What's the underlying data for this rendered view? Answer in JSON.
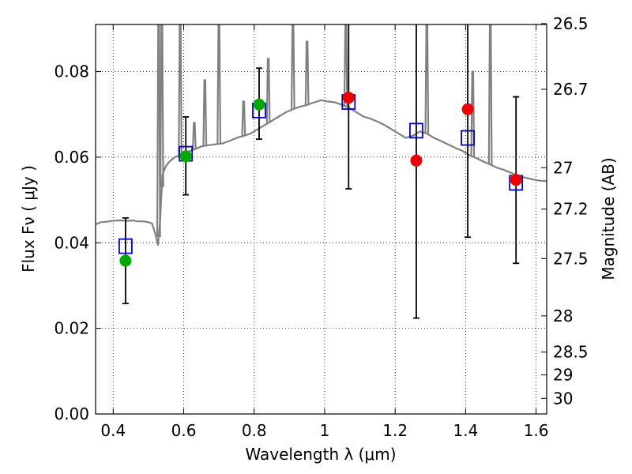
{
  "chart_data": {
    "type": "scatter",
    "xlabel": "Wavelength  λ (μm)",
    "ylabel": "Flux  Fν  ( μJy )",
    "y2label": "Magnitude (AB)",
    "xlim": [
      0.35,
      1.63
    ],
    "ylim": [
      0.0,
      0.091
    ],
    "x_ticks": [
      0.4,
      0.6,
      0.8,
      1.0,
      1.2,
      1.4,
      1.6
    ],
    "x_tick_labels": [
      "0.4",
      "0.6",
      "0.8",
      "1",
      "1.2",
      "1.4",
      "1.6"
    ],
    "y_ticks": [
      0.0,
      0.02,
      0.04,
      0.06,
      0.08
    ],
    "y_tick_labels": [
      "0.00",
      "0.02",
      "0.04",
      "0.06",
      "0.08"
    ],
    "mag_ticks": [
      "26.5",
      "26.7",
      "27",
      "27.2",
      "27.5",
      "28",
      "28.5",
      "29",
      "30"
    ],
    "grid": true,
    "grid_style": "dotted",
    "colors": {
      "spectrum": "#808080",
      "green_points": "#00aa00",
      "red_points": "#ee0000",
      "model_boxes": "#0000cc",
      "errorbars": "#000000"
    },
    "series": [
      {
        "kind": "observed",
        "color": "green",
        "points": [
          {
            "x": 0.435,
            "y": 0.0358,
            "yerr_low": 0.0258,
            "yerr_high": 0.0458
          },
          {
            "x": 0.606,
            "y": 0.0602,
            "yerr_low": 0.0512,
            "yerr_high": 0.0694
          },
          {
            "x": 0.814,
            "y": 0.0723,
            "yerr_low": 0.0642,
            "yerr_high": 0.0808
          }
        ]
      },
      {
        "kind": "observed",
        "color": "red",
        "points": [
          {
            "x": 1.068,
            "y": 0.0739,
            "yerr_low": 0.0526,
            "yerr_high": 0.091
          },
          {
            "x": 1.26,
            "y": 0.0592,
            "yerr_low": 0.0224,
            "yerr_high": 0.091
          },
          {
            "x": 1.406,
            "y": 0.0712,
            "yerr_low": 0.0413,
            "yerr_high": 0.091
          },
          {
            "x": 1.543,
            "y": 0.0547,
            "yerr_low": 0.0352,
            "yerr_high": 0.0741
          }
        ]
      },
      {
        "kind": "model-photometry",
        "marker": "open-square",
        "points": [
          {
            "x": 0.435,
            "y": 0.0392
          },
          {
            "x": 0.606,
            "y": 0.0608
          },
          {
            "x": 0.814,
            "y": 0.0709
          },
          {
            "x": 1.068,
            "y": 0.0729
          },
          {
            "x": 1.26,
            "y": 0.0662
          },
          {
            "x": 1.406,
            "y": 0.0645
          },
          {
            "x": 1.543,
            "y": 0.054
          }
        ]
      },
      {
        "kind": "model-spectrum",
        "color": "gray",
        "points": [
          [
            0.35,
            0.0443
          ],
          [
            0.365,
            0.0448
          ],
          [
            0.38,
            0.0449
          ],
          [
            0.395,
            0.0451
          ],
          [
            0.41,
            0.0452
          ],
          [
            0.425,
            0.0452
          ],
          [
            0.44,
            0.0451
          ],
          [
            0.455,
            0.0452
          ],
          [
            0.47,
            0.045
          ],
          [
            0.485,
            0.045
          ],
          [
            0.5,
            0.0448
          ],
          [
            0.51,
            0.0445
          ],
          [
            0.52,
            0.042
          ],
          [
            0.527,
            0.0395
          ],
          [
            0.533,
            0.045
          ],
          [
            0.536,
            0.05
          ],
          [
            0.54,
            0.056
          ],
          [
            0.55,
            0.058
          ],
          [
            0.56,
            0.059
          ],
          [
            0.575,
            0.06
          ],
          [
            0.59,
            0.0605
          ],
          [
            0.61,
            0.0612
          ],
          [
            0.63,
            0.0618
          ],
          [
            0.65,
            0.0625
          ],
          [
            0.67,
            0.0628
          ],
          [
            0.69,
            0.063
          ],
          [
            0.71,
            0.0632
          ],
          [
            0.73,
            0.0638
          ],
          [
            0.75,
            0.0645
          ],
          [
            0.77,
            0.065
          ],
          [
            0.79,
            0.0655
          ],
          [
            0.81,
            0.0665
          ],
          [
            0.83,
            0.0675
          ],
          [
            0.85,
            0.0685
          ],
          [
            0.87,
            0.0695
          ],
          [
            0.89,
            0.0705
          ],
          [
            0.91,
            0.0712
          ],
          [
            0.93,
            0.0718
          ],
          [
            0.95,
            0.0722
          ],
          [
            0.97,
            0.0728
          ],
          [
            0.99,
            0.0733
          ],
          [
            1.01,
            0.073
          ],
          [
            1.03,
            0.0728
          ],
          [
            1.05,
            0.0722
          ],
          [
            1.07,
            0.0715
          ],
          [
            1.09,
            0.0705
          ],
          [
            1.11,
            0.0695
          ],
          [
            1.13,
            0.069
          ],
          [
            1.15,
            0.0683
          ],
          [
            1.17,
            0.0675
          ],
          [
            1.19,
            0.0665
          ],
          [
            1.21,
            0.0655
          ],
          [
            1.23,
            0.0645
          ],
          [
            1.25,
            0.065
          ],
          [
            1.27,
            0.066
          ],
          [
            1.29,
            0.0655
          ],
          [
            1.31,
            0.0645
          ],
          [
            1.33,
            0.0638
          ],
          [
            1.35,
            0.063
          ],
          [
            1.37,
            0.0622
          ],
          [
            1.39,
            0.0615
          ],
          [
            1.41,
            0.0605
          ],
          [
            1.43,
            0.0598
          ],
          [
            1.45,
            0.059
          ],
          [
            1.47,
            0.0583
          ],
          [
            1.49,
            0.0575
          ],
          [
            1.51,
            0.057
          ],
          [
            1.53,
            0.0563
          ],
          [
            1.55,
            0.0555
          ],
          [
            1.57,
            0.0552
          ],
          [
            1.59,
            0.0548
          ],
          [
            1.61,
            0.0545
          ],
          [
            1.63,
            0.0544
          ]
        ],
        "emission_lines": [
          {
            "x": 0.529,
            "y": 0.091
          },
          {
            "x": 0.538,
            "y": 0.091
          },
          {
            "x": 0.59,
            "y": 0.091
          },
          {
            "x": 0.63,
            "y": 0.068
          },
          {
            "x": 0.66,
            "y": 0.078
          },
          {
            "x": 0.7,
            "y": 0.091
          },
          {
            "x": 0.77,
            "y": 0.073
          },
          {
            "x": 0.84,
            "y": 0.083
          },
          {
            "x": 0.91,
            "y": 0.091
          },
          {
            "x": 0.95,
            "y": 0.087
          },
          {
            "x": 1.06,
            "y": 0.091
          },
          {
            "x": 1.29,
            "y": 0.091
          },
          {
            "x": 1.42,
            "y": 0.08
          },
          {
            "x": 1.47,
            "y": 0.091
          }
        ]
      }
    ]
  }
}
